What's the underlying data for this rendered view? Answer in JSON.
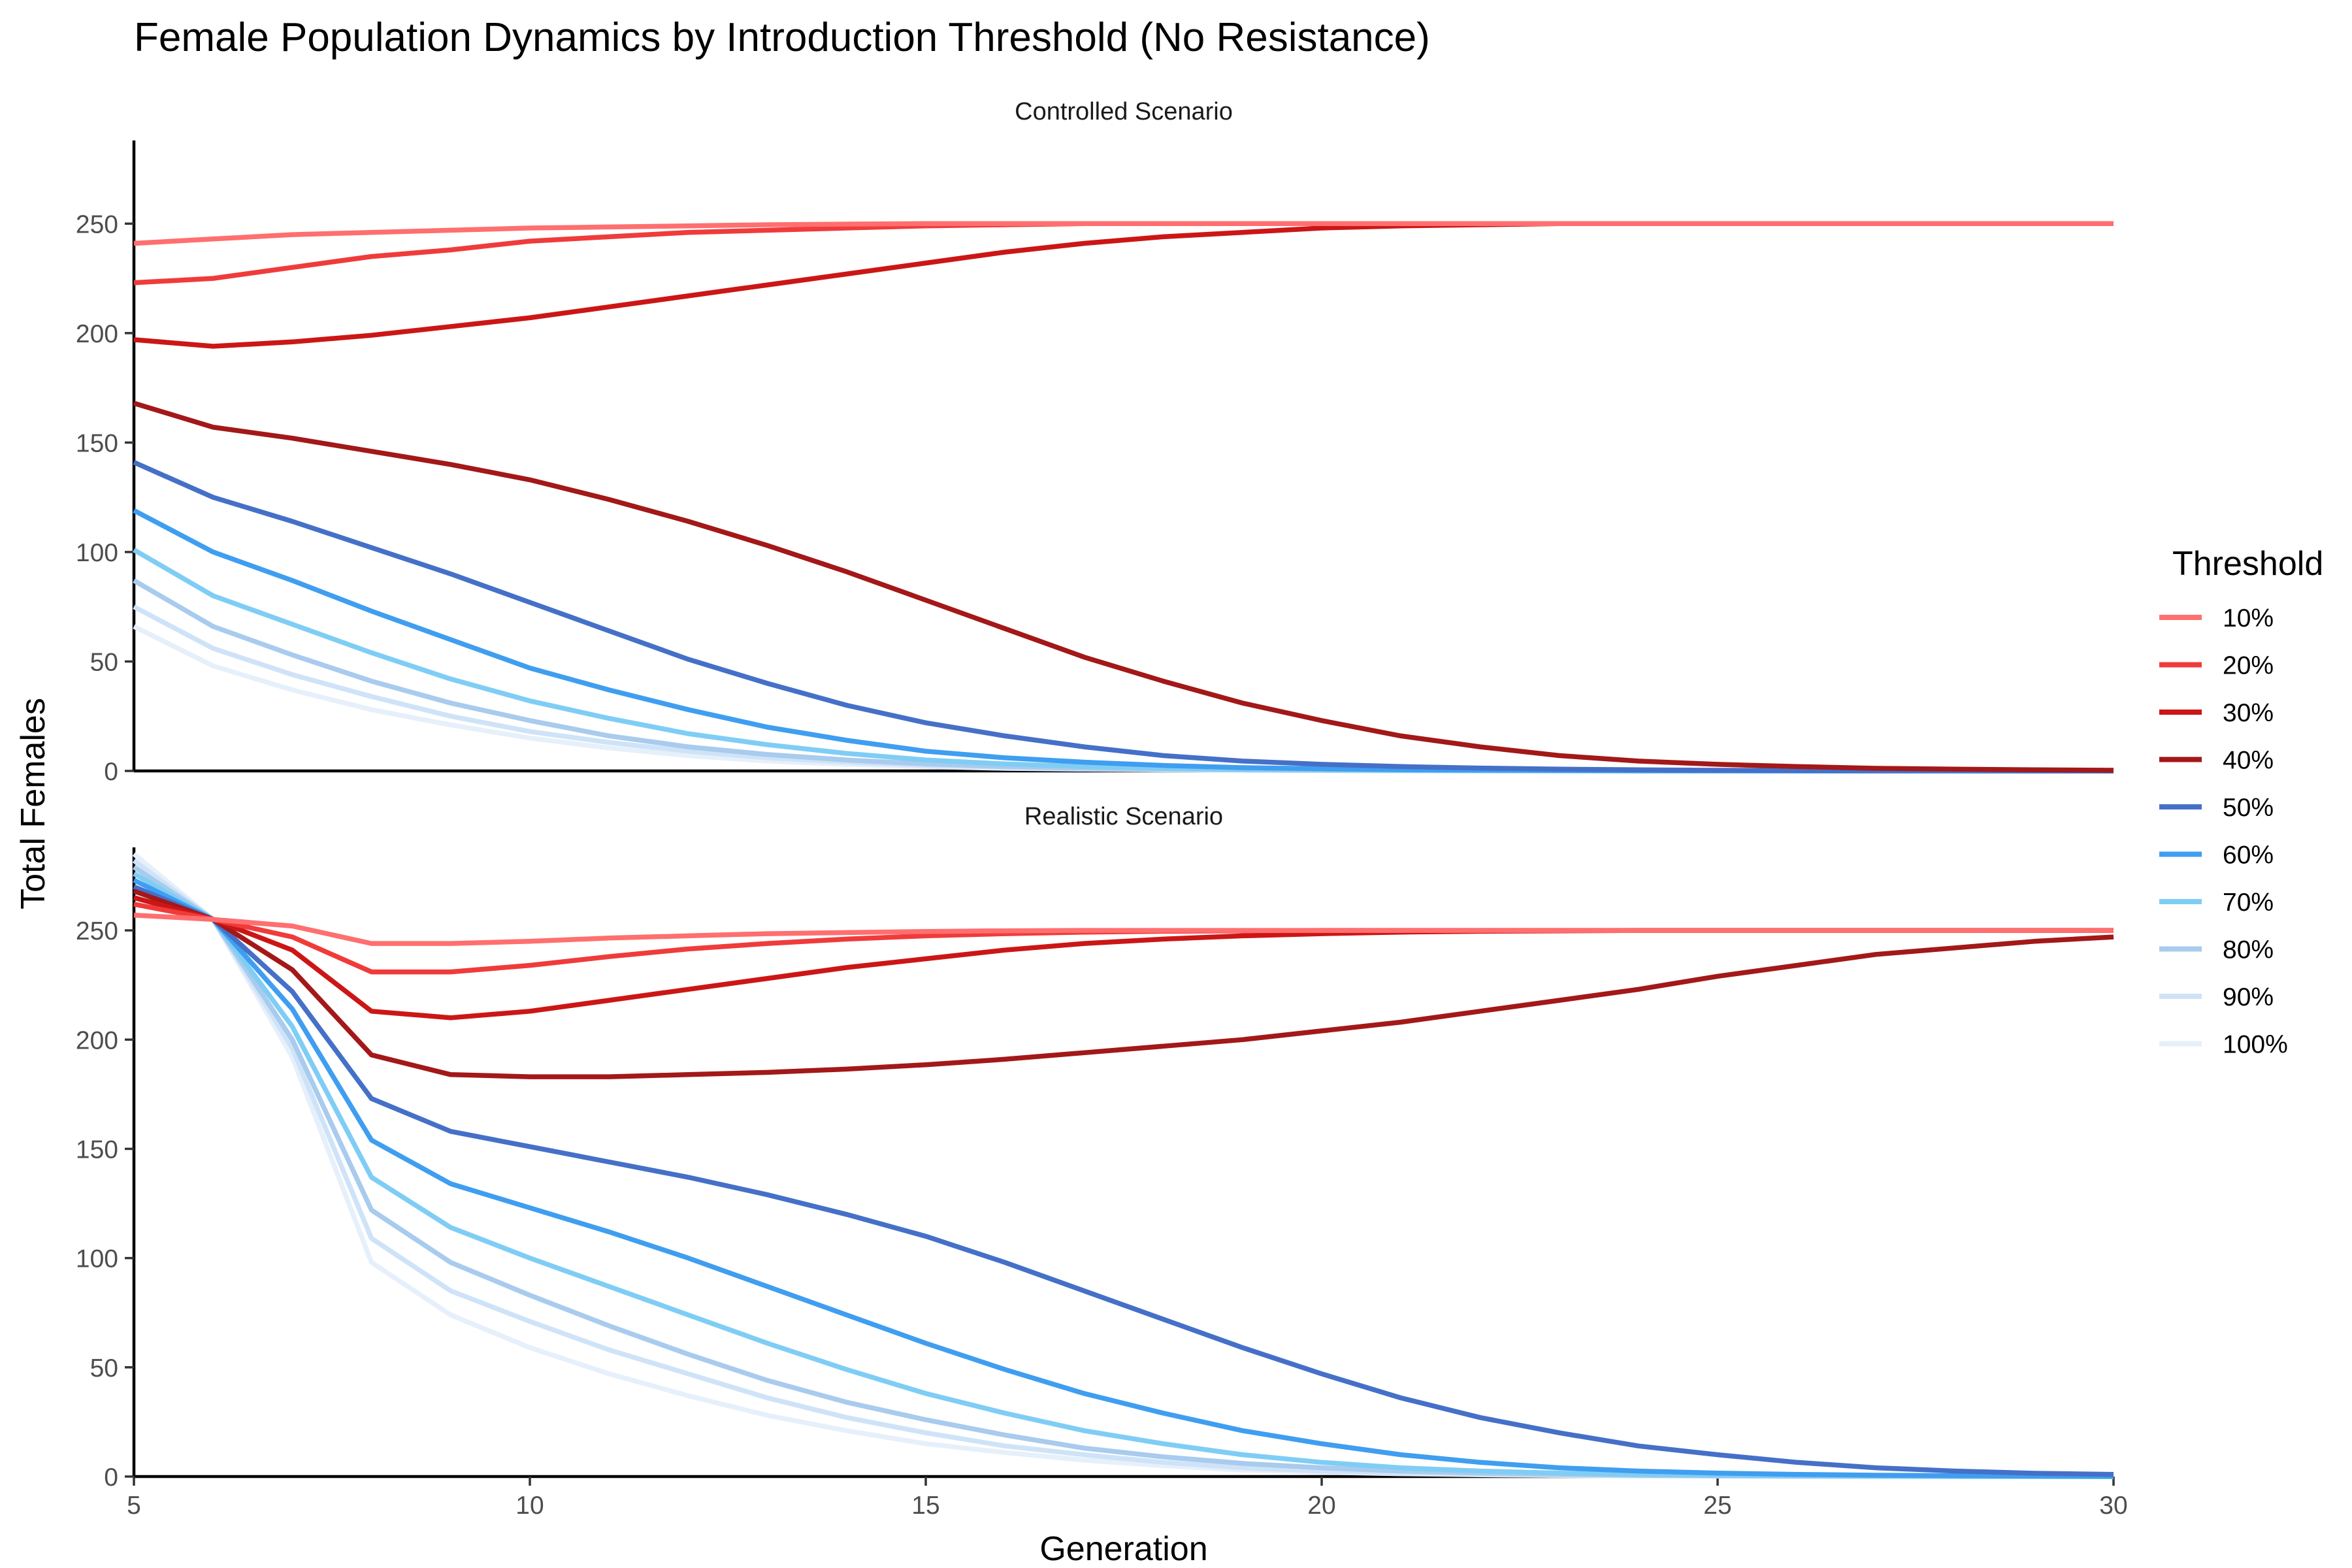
{
  "chart_data": {
    "type": "line",
    "title": "Female Population Dynamics by Introduction Threshold (No Resistance)",
    "xlabel": "Generation",
    "ylabel": "Total Females",
    "xlim": [
      5,
      30
    ],
    "ylim": [
      0,
      288
    ],
    "x_ticks": [
      5,
      10,
      15,
      20,
      25,
      30
    ],
    "y_ticks": [
      0,
      50,
      100,
      150,
      200,
      250
    ],
    "grid": false,
    "legend": {
      "title": "Threshold",
      "position": "right"
    },
    "x": [
      5,
      6,
      7,
      8,
      9,
      10,
      11,
      12,
      13,
      14,
      15,
      16,
      17,
      18,
      19,
      20,
      21,
      22,
      23,
      24,
      25,
      26,
      27,
      28,
      29,
      30
    ],
    "panels": [
      {
        "name": "Controlled Scenario",
        "series": [
          {
            "name": "10%",
            "color": "#ff6f6f",
            "values": [
              241,
              243,
              245,
              246,
              247,
              248,
              248.5,
              249,
              249.5,
              249.8,
              250,
              250,
              250,
              250,
              250,
              250,
              250,
              250,
              250,
              250,
              250,
              250,
              250,
              250,
              250,
              250
            ]
          },
          {
            "name": "20%",
            "color": "#f03b3b",
            "values": [
              223,
              225,
              230,
              235,
              238,
              242,
              244,
              246,
              247,
              248,
              249,
              249.5,
              250,
              250,
              250,
              250,
              250,
              250,
              250,
              250,
              250,
              250,
              250,
              250,
              250,
              250
            ]
          },
          {
            "name": "30%",
            "color": "#cc1616",
            "values": [
              197,
              194,
              196,
              199,
              203,
              207,
              212,
              217,
              222,
              227,
              232,
              237,
              241,
              244,
              246,
              248,
              249,
              249.5,
              250,
              250,
              250,
              250,
              250,
              250,
              250,
              250
            ]
          },
          {
            "name": "40%",
            "color": "#a31818",
            "values": [
              168,
              157,
              152,
              146,
              140,
              133,
              124,
              114,
              103,
              91,
              78,
              65,
              52,
              41,
              31,
              23,
              16,
              11,
              7,
              4.5,
              3,
              2,
              1.2,
              0.8,
              0.5,
              0.3
            ]
          },
          {
            "name": "50%",
            "color": "#4570c8",
            "values": [
              141,
              125,
              114,
              102,
              90,
              77,
              64,
              51,
              40,
              30,
              22,
              16,
              11,
              7,
              4.5,
              3,
              2,
              1.3,
              0.8,
              0.5,
              0.3,
              0.2,
              0.1,
              0.1,
              0,
              0
            ]
          },
          {
            "name": "60%",
            "color": "#3f9ef0",
            "values": [
              119,
              100,
              87,
              73,
              60,
              47,
              37,
              28,
              20,
              14,
              9,
              6,
              4,
              2.5,
              1.5,
              1,
              0.6,
              0.4,
              0.2,
              0.1,
              0.1,
              0,
              0,
              0,
              0,
              0
            ]
          },
          {
            "name": "70%",
            "color": "#7fcdf5",
            "values": [
              101,
              80,
              67,
              54,
              42,
              32,
              24,
              17,
              12,
              8,
              5,
              3.2,
              2,
              1.2,
              0.8,
              0.5,
              0.3,
              0.2,
              0.1,
              0.1,
              0,
              0,
              0,
              0,
              0,
              0
            ]
          },
          {
            "name": "80%",
            "color": "#a8cbee",
            "values": [
              87,
              66,
              53,
              41,
              31,
              23,
              16,
              11,
              7.5,
              5,
              3.2,
              2,
              1.2,
              0.8,
              0.5,
              0.3,
              0.2,
              0.1,
              0.1,
              0,
              0,
              0,
              0,
              0,
              0,
              0
            ]
          },
          {
            "name": "90%",
            "color": "#cfe3f8",
            "values": [
              75,
              56,
              44,
              34,
              25,
              18,
              13,
              9,
              6,
              4,
              2.5,
              1.6,
              1,
              0.6,
              0.4,
              0.2,
              0.1,
              0.1,
              0,
              0,
              0,
              0,
              0,
              0,
              0,
              0
            ]
          },
          {
            "name": "100%",
            "color": "#e6f0fb",
            "values": [
              66,
              48,
              37,
              28,
              21,
              15,
              10.5,
              7,
              4.5,
              3,
              2,
              1.2,
              0.8,
              0.5,
              0.3,
              0.2,
              0.1,
              0,
              0,
              0,
              0,
              0,
              0,
              0,
              0,
              0
            ]
          }
        ]
      },
      {
        "name": "Realistic Scenario",
        "series": [
          {
            "name": "10%",
            "color": "#ff6f6f",
            "values": [
              257,
              255,
              252,
              244,
              244,
              245,
              246.5,
              247.5,
              248.5,
              249,
              249.5,
              249.8,
              250,
              250,
              250,
              250,
              250,
              250,
              250,
              250,
              250,
              250,
              250,
              250,
              250,
              250
            ]
          },
          {
            "name": "20%",
            "color": "#f03b3b",
            "values": [
              262,
              255,
              247,
              231,
              231,
              234,
              238,
              241.5,
              244,
              246,
              247.5,
              248.5,
              249.2,
              249.6,
              249.8,
              250,
              250,
              250,
              250,
              250,
              250,
              250,
              250,
              250,
              250,
              250
            ]
          },
          {
            "name": "30%",
            "color": "#cc1616",
            "values": [
              265,
              255,
              241,
              213,
              210,
              213,
              218,
              223,
              228,
              233,
              237,
              241,
              244,
              246,
              247.5,
              248.5,
              249.2,
              249.6,
              249.8,
              250,
              250,
              250,
              250,
              250,
              250,
              250
            ]
          },
          {
            "name": "40%",
            "color": "#a31818",
            "values": [
              268,
              255,
              232,
              193,
              184,
              183,
              183,
              184,
              185,
              186.5,
              188.5,
              191,
              194,
              197,
              200,
              204,
              208,
              213,
              218,
              223,
              229,
              234,
              239,
              242,
              245,
              247
            ]
          },
          {
            "name": "50%",
            "color": "#4570c8",
            "values": [
              270,
              255,
              222,
              173,
              158,
              151,
              144,
              137,
              129,
              120,
              110,
              98,
              85,
              72,
              59,
              47,
              36,
              27,
              20,
              14,
              10,
              6.5,
              4,
              2.5,
              1.5,
              1
            ]
          },
          {
            "name": "60%",
            "color": "#3f9ef0",
            "values": [
              273,
              255,
              214,
              154,
              134,
              123,
              112,
              100,
              87,
              74,
              61,
              49,
              38,
              29,
              21,
              15,
              10,
              6.5,
              4,
              2.5,
              1.6,
              1,
              0.6,
              0.4,
              0.2,
              0.1
            ]
          },
          {
            "name": "70%",
            "color": "#7fcdf5",
            "values": [
              276,
              255,
              206,
              137,
              114,
              100,
              87,
              74,
              61,
              49,
              38,
              29,
              21,
              15,
              10,
              6.5,
              4,
              2.5,
              1.6,
              1,
              0.6,
              0.4,
              0.2,
              0.1,
              0.1,
              0
            ]
          },
          {
            "name": "80%",
            "color": "#a8cbee",
            "values": [
              279,
              255,
              200,
              122,
              98,
              83,
              69,
              56,
              44,
              34,
              26,
              19,
              13,
              9,
              6,
              4,
              2.5,
              1.6,
              1,
              0.6,
              0.4,
              0.2,
              0.1,
              0.1,
              0,
              0
            ]
          },
          {
            "name": "90%",
            "color": "#cfe3f8",
            "values": [
              282,
              255,
              196,
              109,
              85,
              71,
              58,
              47,
              36,
              27,
              20,
              14,
              10,
              6.5,
              4,
              2.5,
              1.6,
              1,
              0.6,
              0.4,
              0.2,
              0.1,
              0.1,
              0,
              0,
              0
            ]
          },
          {
            "name": "100%",
            "color": "#e6f0fb",
            "values": [
              285,
              255,
              192,
              98,
              74,
              59,
              47,
              37,
              28,
              21,
              15,
              11,
              7.5,
              5,
              3,
              2,
              1.3,
              0.8,
              0.5,
              0.3,
              0.2,
              0.1,
              0,
              0,
              0,
              0
            ]
          }
        ]
      }
    ]
  }
}
